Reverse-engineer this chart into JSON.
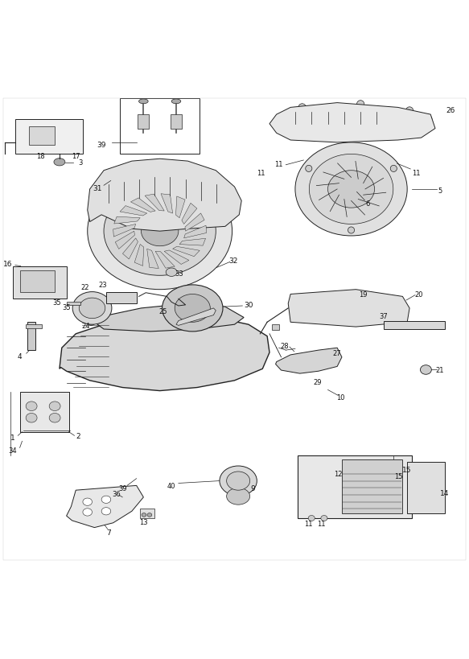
{
  "title": "",
  "bg_color": "#ffffff",
  "line_color": "#222222",
  "fig_width": 5.83,
  "fig_height": 8.2,
  "dpi": 100
}
